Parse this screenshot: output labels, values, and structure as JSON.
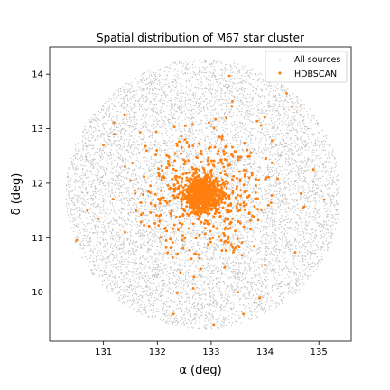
{
  "chart_data": {
    "type": "scatter",
    "title": "Spatial distribution of M67 star cluster",
    "xlabel": "α (deg)",
    "ylabel": "δ (deg)",
    "xlim": [
      130.0,
      135.6
    ],
    "ylim": [
      9.1,
      14.5
    ],
    "xticks": [
      131,
      132,
      133,
      134,
      135
    ],
    "yticks": [
      10,
      11,
      12,
      13,
      14
    ],
    "grid": false,
    "legend": {
      "placement": "top-right",
      "entries": [
        "All sources",
        "HDBSCAN"
      ]
    },
    "series": [
      {
        "name": "All sources",
        "color": "#bfbfbf",
        "distribution": {
          "center": [
            132.85,
            11.8
          ],
          "radius_x": 2.55,
          "radius_y": 2.47,
          "count": 9000
        }
      },
      {
        "name": "HDBSCAN",
        "color": "#ff7f0e",
        "distribution": {
          "center": [
            132.85,
            11.8
          ],
          "core_sigma": 0.17,
          "halo_sigma": 0.6,
          "core_count": 700,
          "halo_count": 450
        },
        "points": [
          [
            133.3,
            13.75
          ],
          [
            134.4,
            13.65
          ],
          [
            134.5,
            13.4
          ],
          [
            130.5,
            10.95
          ],
          [
            130.7,
            11.5
          ],
          [
            130.9,
            11.35
          ],
          [
            131.0,
            12.7
          ],
          [
            131.2,
            12.9
          ],
          [
            131.5,
            12.05
          ],
          [
            134.9,
            12.25
          ],
          [
            135.1,
            11.7
          ],
          [
            134.0,
            10.5
          ],
          [
            133.5,
            10.0
          ],
          [
            133.9,
            9.9
          ],
          [
            132.3,
            9.6
          ],
          [
            133.05,
            9.4
          ],
          [
            133.6,
            9.6
          ],
          [
            131.8,
            12.6
          ],
          [
            131.4,
            11.1
          ],
          [
            134.7,
            11.55
          ]
        ]
      }
    ]
  }
}
